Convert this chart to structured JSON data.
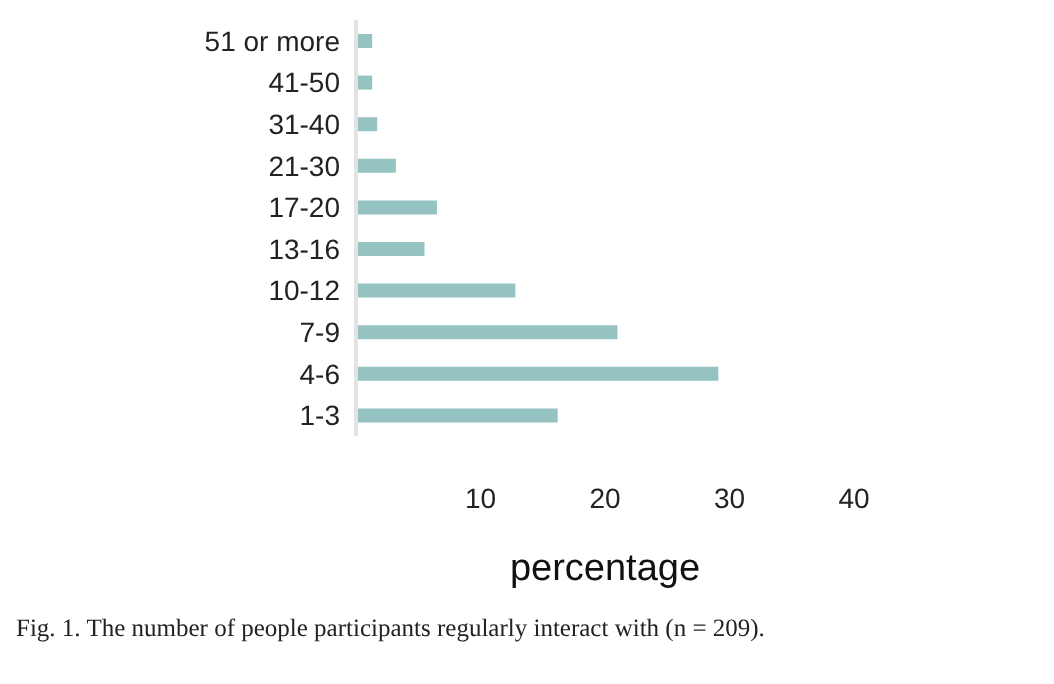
{
  "chart_data": {
    "type": "bar",
    "orientation": "horizontal",
    "categories": [
      "51 or more",
      "41-50",
      "31-40",
      "21-30",
      "17-20",
      "13-16",
      "10-12",
      "7-9",
      "4-6",
      "1-3"
    ],
    "values": [
      1.3,
      1.3,
      1.7,
      3.2,
      6.5,
      5.5,
      12.8,
      21.0,
      29.1,
      16.2
    ],
    "color": "#94c3c1",
    "xlabel": "percentage",
    "xlim": [
      0,
      40
    ],
    "xticks": [
      10,
      20,
      30,
      40
    ],
    "grid": false,
    "legend": false,
    "annotations": [
      "Fig. 1. The number of people participants regularly interact with (n = 209)."
    ]
  }
}
